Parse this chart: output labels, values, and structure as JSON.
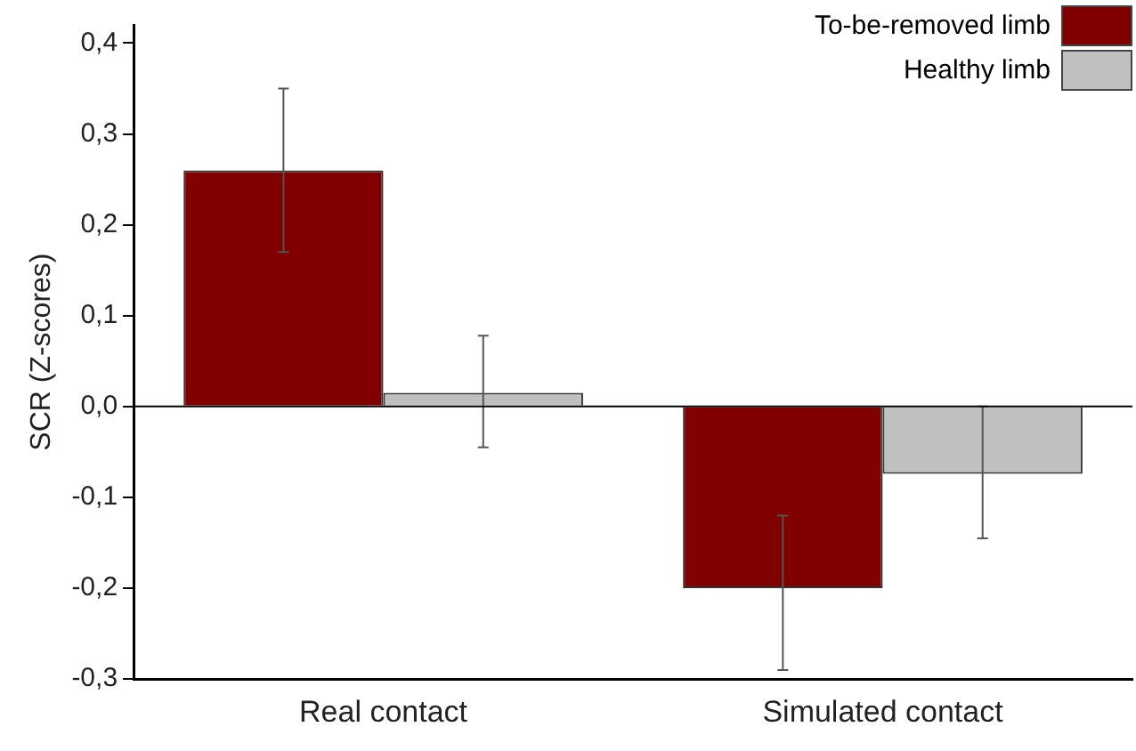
{
  "chart_data": {
    "type": "bar",
    "ylabel": "SCR (Z-scores)",
    "categories": [
      "Real contact",
      "Simulated contact"
    ],
    "series": [
      {
        "name": "To-be-removed limb",
        "color": "#800000",
        "values": [
          0.26,
          -0.2
        ],
        "errors": [
          [
            0.17,
            0.35
          ],
          [
            -0.29,
            -0.12
          ]
        ]
      },
      {
        "name": "Healthy limb",
        "color": "#c0c0c0",
        "values": [
          0.015,
          -0.074
        ],
        "errors": [
          [
            -0.045,
            0.078
          ],
          [
            -0.145,
            0
          ]
        ]
      }
    ],
    "ylim": [
      -0.3,
      0.42
    ],
    "yticks": [
      {
        "value": -0.3,
        "label": "-0,3"
      },
      {
        "value": -0.2,
        "label": "-0,2"
      },
      {
        "value": -0.1,
        "label": "-0,1"
      },
      {
        "value": 0,
        "label": "0,0"
      },
      {
        "value": 0.1,
        "label": "0,1"
      },
      {
        "value": 0.2,
        "label": "0,2"
      },
      {
        "value": 0.3,
        "label": "0,3"
      },
      {
        "value": 0.4,
        "label": "0,4"
      }
    ],
    "ref_lines": [
      {
        "axis": "y",
        "value": 0,
        "color": "#000000"
      }
    ],
    "grid": false,
    "legend": "top right"
  }
}
